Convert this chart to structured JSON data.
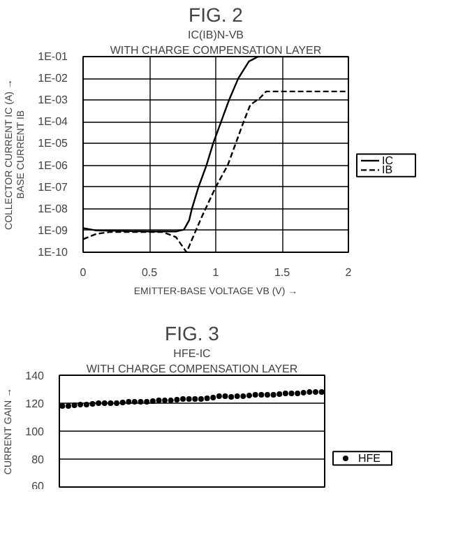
{
  "chart_data": [
    {
      "type": "line",
      "title": "FIG. 2",
      "subtitle": "IC(IB)N-VB",
      "annotations": [
        "WITH CHARGE COMPENSATION LAYER"
      ],
      "xlabel": "EMITTER-BASE VOLTAGE VB (V) →",
      "ylabel": "COLLECTOR CURRENT IC (A) →\nBASE CURRENT IB",
      "log": "y",
      "grid": true,
      "legend": "right",
      "xlim": [
        0,
        2
      ],
      "xticks": [
        0,
        0.5,
        1,
        1.5,
        2
      ],
      "ylim": [
        1e-10,
        0.1
      ],
      "yticks": [
        {
          "value": 1e-10,
          "label": "1E-10"
        },
        {
          "value": 1e-09,
          "label": "1E-09"
        },
        {
          "value": 1e-08,
          "label": "1E-08"
        },
        {
          "value": 1e-07,
          "label": "1E-07"
        },
        {
          "value": 1e-06,
          "label": "1E-06"
        },
        {
          "value": 1e-05,
          "label": "1E-05"
        },
        {
          "value": 0.0001,
          "label": "1E-04"
        },
        {
          "value": 0.001,
          "label": "1E-03"
        },
        {
          "value": 0.01,
          "label": "1E-02"
        },
        {
          "value": 0.1,
          "label": "1E-01"
        }
      ],
      "series": [
        {
          "name": "IC",
          "color": "#000000",
          "line_style": "solid",
          "x": [
            0,
            0.1,
            0.5,
            0.7,
            0.76,
            0.8,
            0.82,
            0.87,
            0.93,
            0.98,
            1.04,
            1.1,
            1.17,
            1.25,
            1.32,
            2
          ],
          "values": [
            1.3e-09,
            1e-09,
            9e-10,
            9e-10,
            1.1e-09,
            3e-09,
            1e-08,
            1e-07,
            1e-06,
            1e-05,
            0.0001,
            0.001,
            0.01,
            0.06,
            0.1,
            0.1
          ]
        },
        {
          "name": "IB",
          "color": "#000000",
          "line_style": "dashed",
          "x": [
            0,
            0.1,
            0.2,
            0.6,
            0.7,
            0.78,
            0.85,
            0.9,
            1.0,
            1.09,
            1.15,
            1.21,
            1.26,
            1.33,
            1.38,
            2
          ],
          "values": [
            4e-10,
            7e-10,
            8.5e-10,
            8.5e-10,
            5e-10,
            1e-10,
            1e-09,
            5e-09,
            1e-07,
            1e-06,
            1e-05,
            0.0001,
            0.0006,
            0.0012,
            0.0025,
            0.0025
          ]
        }
      ]
    },
    {
      "type": "scatter",
      "title": "FIG. 3",
      "subtitle": "HFE-IC",
      "annotations": [
        "WITH CHARGE COMPENSATION LAYER"
      ],
      "ylabel": "CURRENT GAIN →",
      "grid": "y",
      "legend": "right",
      "marker": "circle",
      "tick_labels": "y",
      "ylim": [
        60,
        140
      ],
      "yticks": [
        60,
        80,
        100,
        120,
        140
      ],
      "categories": [
        null,
        null,
        null,
        null,
        null,
        null,
        null,
        null,
        null,
        null,
        null,
        null,
        null,
        null,
        null,
        null,
        null,
        null,
        null,
        null,
        null,
        null,
        null,
        null,
        null,
        null,
        null,
        null,
        null,
        null,
        null,
        null,
        null,
        null,
        null,
        null,
        null,
        null,
        null,
        null,
        null,
        null,
        null,
        null
      ],
      "series": [
        {
          "name": "HFE",
          "color": "#000000",
          "values": [
            118,
            118,
            118.5,
            119,
            119,
            119.5,
            120,
            120,
            120,
            120,
            120.5,
            121,
            121,
            121,
            121,
            121.5,
            122,
            122,
            122,
            122.5,
            123,
            123,
            123,
            123,
            123.5,
            124,
            125,
            125,
            124.5,
            125,
            125,
            125.5,
            126,
            126,
            126,
            126,
            126.5,
            127,
            127,
            127,
            127.5,
            128,
            128,
            128
          ]
        }
      ]
    }
  ]
}
